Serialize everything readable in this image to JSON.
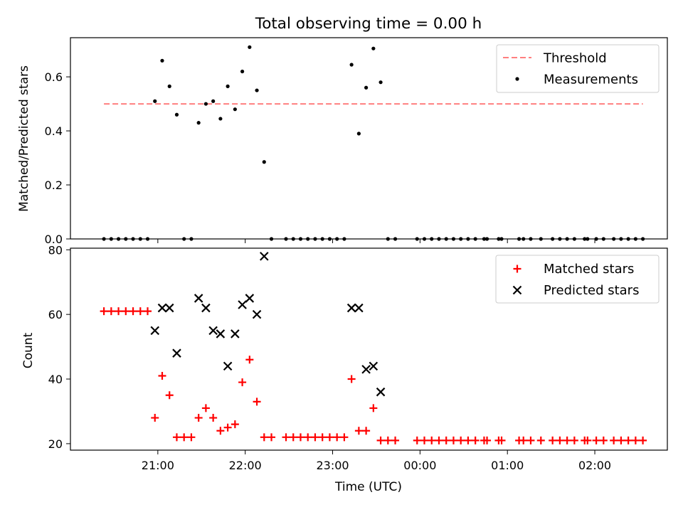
{
  "chart_data": [
    {
      "type": "scatter",
      "title": "Total observing time = 0.00 h",
      "xlabel": "",
      "ylabel": "Matched/Predicted stars",
      "ylim": [
        0,
        0.745
      ],
      "yticks": [
        "0.0",
        "0.2",
        "0.4",
        "0.6"
      ],
      "legend_position": "top-right",
      "threshold": {
        "name": "Threshold",
        "value": 0.5,
        "color": "#ff7f7f",
        "x_start": "20:23",
        "x_end": "02:33"
      },
      "series": [
        {
          "name": "Measurements",
          "color": "#000000",
          "points": [
            [
              "20:23",
              0
            ],
            [
              "20:28",
              0
            ],
            [
              "20:33",
              0
            ],
            [
              "20:38",
              0
            ],
            [
              "20:43",
              0
            ],
            [
              "20:48",
              0
            ],
            [
              "20:53",
              0
            ],
            [
              "20:58",
              0.51
            ],
            [
              "21:03",
              0.66
            ],
            [
              "21:08",
              0.565
            ],
            [
              "21:13",
              0.46
            ],
            [
              "21:18",
              0
            ],
            [
              "21:23",
              0
            ],
            [
              "21:28",
              0.43
            ],
            [
              "21:33",
              0.5
            ],
            [
              "21:38",
              0.51
            ],
            [
              "21:43",
              0.445
            ],
            [
              "21:48",
              0.565
            ],
            [
              "21:53",
              0.48
            ],
            [
              "21:58",
              0.62
            ],
            [
              "22:03",
              0.71
            ],
            [
              "22:08",
              0.55
            ],
            [
              "22:13",
              0.285
            ],
            [
              "22:18",
              0
            ],
            [
              "22:28",
              0
            ],
            [
              "22:33",
              0
            ],
            [
              "22:38",
              0
            ],
            [
              "22:43",
              0
            ],
            [
              "22:48",
              0
            ],
            [
              "22:53",
              0
            ],
            [
              "22:58",
              0
            ],
            [
              "23:03",
              0
            ],
            [
              "23:08",
              0
            ],
            [
              "23:13",
              0.645
            ],
            [
              "23:18",
              0.39
            ],
            [
              "23:23",
              0.56
            ],
            [
              "23:28",
              0.705
            ],
            [
              "23:33",
              0.58
            ],
            [
              "23:38",
              0
            ],
            [
              "23:43",
              0
            ],
            [
              "23:58",
              0
            ],
            [
              "00:03",
              0
            ],
            [
              "00:08",
              0
            ],
            [
              "00:13",
              0
            ],
            [
              "00:18",
              0
            ],
            [
              "00:23",
              0
            ],
            [
              "00:28",
              0
            ],
            [
              "00:33",
              0
            ],
            [
              "00:38",
              0
            ],
            [
              "00:44",
              0
            ],
            [
              "00:46",
              0
            ],
            [
              "00:54",
              0
            ],
            [
              "00:56",
              0
            ],
            [
              "01:08",
              0
            ],
            [
              "01:11",
              0
            ],
            [
              "01:16",
              0
            ],
            [
              "01:23",
              0
            ],
            [
              "01:31",
              0
            ],
            [
              "01:36",
              0
            ],
            [
              "01:41",
              0
            ],
            [
              "01:46",
              0
            ],
            [
              "01:53",
              0
            ],
            [
              "01:55",
              0
            ],
            [
              "02:01",
              0
            ],
            [
              "02:06",
              0
            ],
            [
              "02:13",
              0
            ],
            [
              "02:18",
              0
            ],
            [
              "02:23",
              0
            ],
            [
              "02:28",
              0
            ],
            [
              "02:33",
              0
            ]
          ]
        }
      ]
    },
    {
      "type": "scatter",
      "title": "",
      "xlabel": "Time (UTC)",
      "ylabel": "Count",
      "ylim": [
        18,
        80.5
      ],
      "yticks": [
        "20",
        "40",
        "60",
        "80"
      ],
      "xticks": [
        "21:00",
        "22:00",
        "23:00",
        "00:00",
        "01:00",
        "02:00"
      ],
      "legend_position": "top-right",
      "series": [
        {
          "name": "Matched stars",
          "marker": "+",
          "color": "#ff0000",
          "points": [
            [
              "20:23",
              61
            ],
            [
              "20:28",
              61
            ],
            [
              "20:33",
              61
            ],
            [
              "20:38",
              61
            ],
            [
              "20:43",
              61
            ],
            [
              "20:48",
              61
            ],
            [
              "20:53",
              61
            ],
            [
              "20:58",
              28
            ],
            [
              "21:03",
              41
            ],
            [
              "21:08",
              35
            ],
            [
              "21:13",
              22
            ],
            [
              "21:18",
              22
            ],
            [
              "21:23",
              22
            ],
            [
              "21:28",
              28
            ],
            [
              "21:33",
              31
            ],
            [
              "21:38",
              28
            ],
            [
              "21:43",
              24
            ],
            [
              "21:48",
              25
            ],
            [
              "21:53",
              26
            ],
            [
              "21:58",
              39
            ],
            [
              "22:03",
              46
            ],
            [
              "22:08",
              33
            ],
            [
              "22:13",
              22
            ],
            [
              "22:18",
              22
            ],
            [
              "22:28",
              22
            ],
            [
              "22:33",
              22
            ],
            [
              "22:38",
              22
            ],
            [
              "22:43",
              22
            ],
            [
              "22:48",
              22
            ],
            [
              "22:53",
              22
            ],
            [
              "22:58",
              22
            ],
            [
              "23:03",
              22
            ],
            [
              "23:08",
              22
            ],
            [
              "23:13",
              40
            ],
            [
              "23:18",
              24
            ],
            [
              "23:23",
              24
            ],
            [
              "23:28",
              31
            ],
            [
              "23:33",
              21
            ],
            [
              "23:38",
              21
            ],
            [
              "23:43",
              21
            ],
            [
              "23:58",
              21
            ],
            [
              "00:03",
              21
            ],
            [
              "00:08",
              21
            ],
            [
              "00:13",
              21
            ],
            [
              "00:18",
              21
            ],
            [
              "00:23",
              21
            ],
            [
              "00:28",
              21
            ],
            [
              "00:33",
              21
            ],
            [
              "00:38",
              21
            ],
            [
              "00:44",
              21
            ],
            [
              "00:46",
              21
            ],
            [
              "00:54",
              21
            ],
            [
              "00:56",
              21
            ],
            [
              "01:08",
              21
            ],
            [
              "01:11",
              21
            ],
            [
              "01:16",
              21
            ],
            [
              "01:23",
              21
            ],
            [
              "01:31",
              21
            ],
            [
              "01:36",
              21
            ],
            [
              "01:41",
              21
            ],
            [
              "01:46",
              21
            ],
            [
              "01:53",
              21
            ],
            [
              "01:55",
              21
            ],
            [
              "02:01",
              21
            ],
            [
              "02:06",
              21
            ],
            [
              "02:13",
              21
            ],
            [
              "02:18",
              21
            ],
            [
              "02:23",
              21
            ],
            [
              "02:28",
              21
            ],
            [
              "02:33",
              21
            ]
          ]
        },
        {
          "name": "Predicted stars",
          "marker": "x",
          "color": "#000000",
          "points": [
            [
              "20:58",
              55
            ],
            [
              "21:03",
              62
            ],
            [
              "21:08",
              62
            ],
            [
              "21:13",
              48
            ],
            [
              "21:28",
              65
            ],
            [
              "21:33",
              62
            ],
            [
              "21:38",
              55
            ],
            [
              "21:43",
              54
            ],
            [
              "21:48",
              44
            ],
            [
              "21:53",
              54
            ],
            [
              "21:58",
              63
            ],
            [
              "22:03",
              65
            ],
            [
              "22:08",
              60
            ],
            [
              "22:13",
              78
            ],
            [
              "23:13",
              62
            ],
            [
              "23:18",
              62
            ],
            [
              "23:23",
              43
            ],
            [
              "23:28",
              44
            ],
            [
              "23:33",
              36
            ]
          ]
        }
      ]
    }
  ]
}
